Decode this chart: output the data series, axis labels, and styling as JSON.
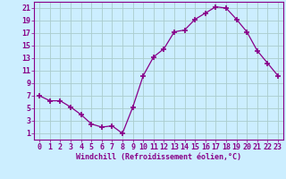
{
  "x": [
    0,
    1,
    2,
    3,
    4,
    5,
    6,
    7,
    8,
    9,
    10,
    11,
    12,
    13,
    14,
    15,
    16,
    17,
    18,
    19,
    20,
    21,
    22,
    23
  ],
  "y": [
    7,
    6.2,
    6.2,
    5.2,
    4.0,
    2.5,
    2.0,
    2.2,
    1.0,
    5.2,
    10.2,
    13.2,
    14.5,
    17.2,
    17.5,
    19.2,
    20.2,
    21.2,
    21.0,
    19.2,
    17.2,
    14.2,
    12.2,
    10.2
  ],
  "line_color": "#880088",
  "marker": "+",
  "marker_size": 4,
  "marker_lw": 1.2,
  "bg_color": "#cceeff",
  "grid_color": "#aacccc",
  "xlabel": "Windchill (Refroidissement éolien,°C)",
  "xlabel_fontsize": 6.0,
  "tick_color": "#880088",
  "tick_fontsize": 6.0,
  "ylim": [
    0,
    22
  ],
  "xlim": [
    -0.5,
    23.5
  ],
  "yticks": [
    1,
    3,
    5,
    7,
    9,
    11,
    13,
    15,
    17,
    19,
    21
  ],
  "xticks": [
    0,
    1,
    2,
    3,
    4,
    5,
    6,
    7,
    8,
    9,
    10,
    11,
    12,
    13,
    14,
    15,
    16,
    17,
    18,
    19,
    20,
    21,
    22,
    23
  ]
}
